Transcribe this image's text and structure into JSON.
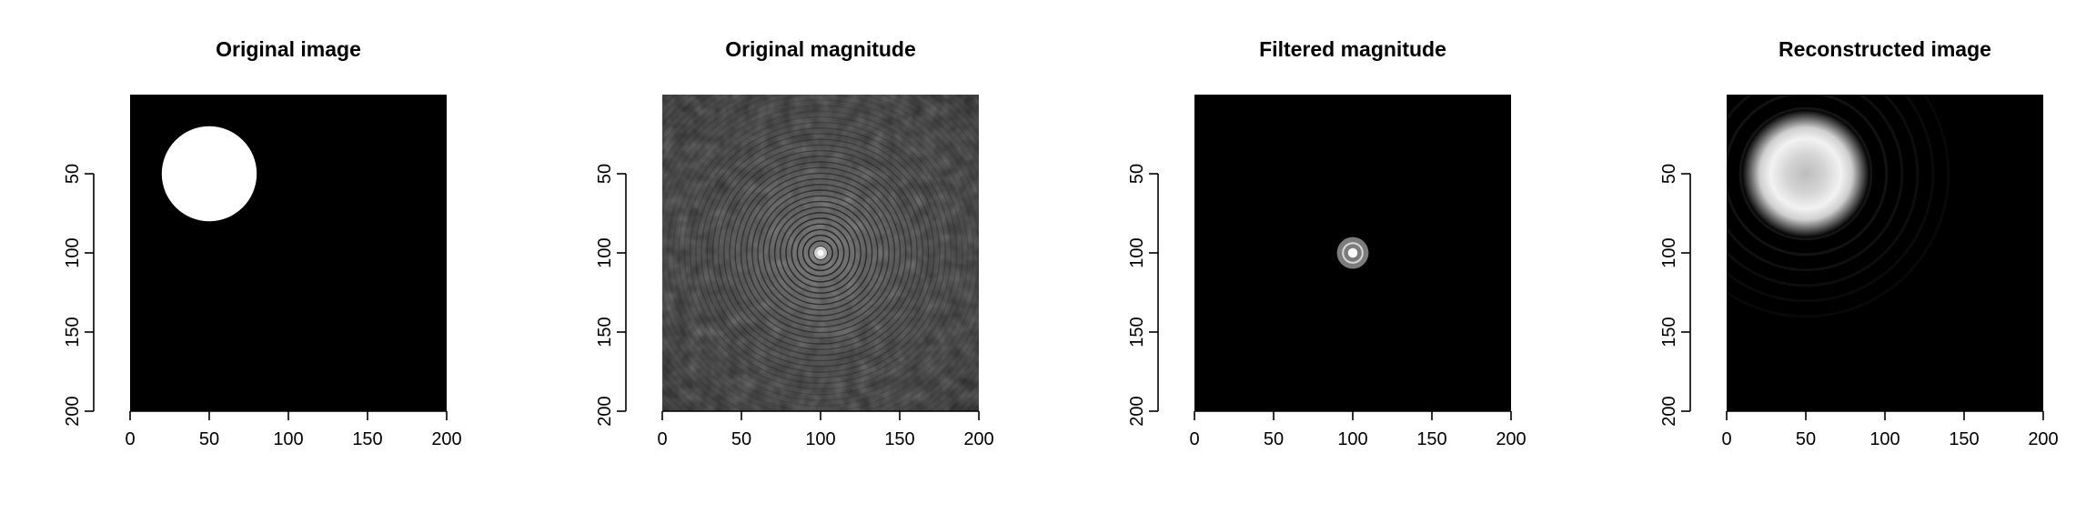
{
  "colors": {
    "background": "#ffffff",
    "image_background": "#000000",
    "foreground": "#ffffff"
  },
  "chart_data": [
    {
      "type": "heatmap",
      "title": "Original image",
      "colormap": "grayscale",
      "image_size": [
        200,
        200
      ],
      "xlim": [
        0,
        200
      ],
      "ylim": [
        200,
        0
      ],
      "x_ticks": [
        "0",
        "50",
        "100",
        "150",
        "200"
      ],
      "y_ticks": [
        "50",
        "100",
        "150",
        "200"
      ],
      "content": {
        "shape": "disk",
        "center": [
          50,
          50
        ],
        "radius": 30,
        "value": 1
      }
    },
    {
      "type": "heatmap",
      "title": "Original magnitude",
      "colormap": "grayscale",
      "image_size": [
        200,
        200
      ],
      "xlim": [
        0,
        200
      ],
      "ylim": [
        200,
        0
      ],
      "x_ticks": [
        "0",
        "50",
        "100",
        "150",
        "200"
      ],
      "y_ticks": [
        "50",
        "100",
        "150",
        "200"
      ],
      "content": {
        "shape": "centered-spectrum",
        "center": [
          100,
          100
        ]
      }
    },
    {
      "type": "heatmap",
      "title": "Filtered magnitude",
      "colormap": "grayscale",
      "image_size": [
        200,
        200
      ],
      "xlim": [
        0,
        200
      ],
      "ylim": [
        200,
        0
      ],
      "x_ticks": [
        "0",
        "50",
        "100",
        "150",
        "200"
      ],
      "y_ticks": [
        "50",
        "100",
        "150",
        "200"
      ],
      "content": {
        "shape": "low-pass-spectrum",
        "center": [
          100,
          100
        ],
        "radius": 10
      }
    },
    {
      "type": "heatmap",
      "title": "Reconstructed image",
      "colormap": "grayscale",
      "image_size": [
        200,
        200
      ],
      "xlim": [
        0,
        200
      ],
      "ylim": [
        200,
        0
      ],
      "x_ticks": [
        "0",
        "50",
        "100",
        "150",
        "200"
      ],
      "y_ticks": [
        "50",
        "100",
        "150",
        "200"
      ],
      "content": {
        "shape": "blurred-disk",
        "center": [
          50,
          50
        ],
        "radius": 30
      }
    }
  ]
}
